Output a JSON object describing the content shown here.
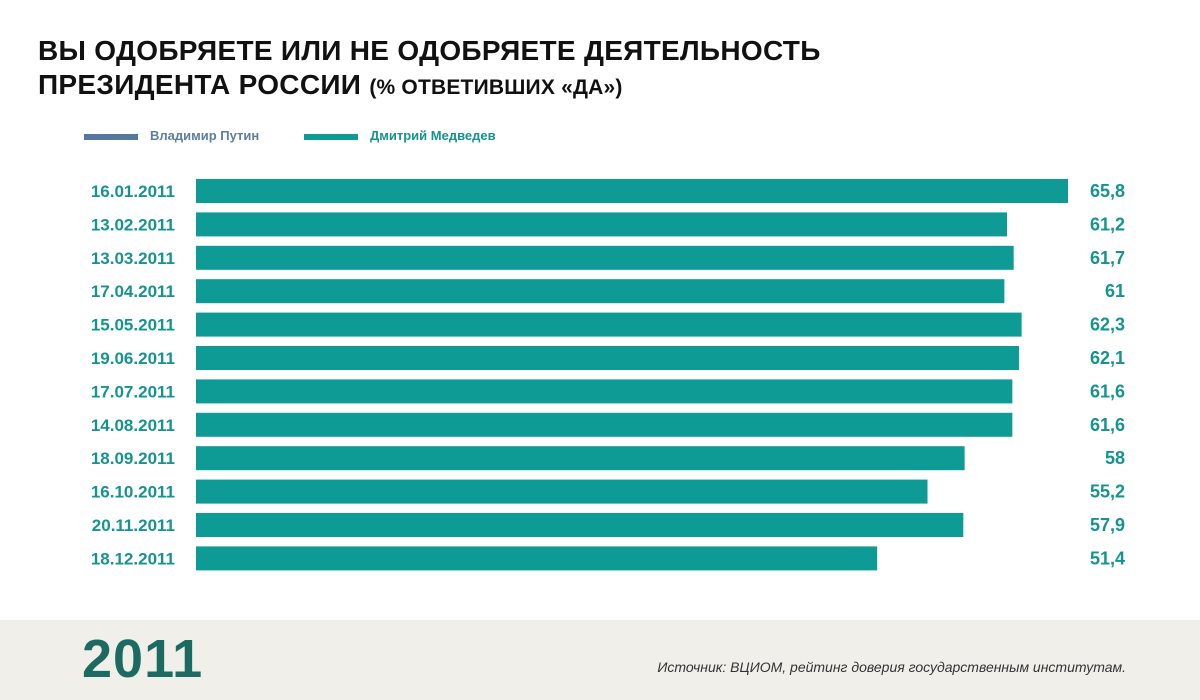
{
  "colors": {
    "putin": "#5477a0",
    "medvedev": "#0e9a95",
    "label_teal": "#15948f",
    "putin_label": "#5c7ea3",
    "year": "#1d6a62",
    "footer_bg": "#f1efe9"
  },
  "title": {
    "line1": "ВЫ ОДОБРЯЕТЕ ИЛИ НЕ ОДОБРЯЕТЕ ДЕЯТЕЛЬНОСТЬ",
    "line2_main": "ПРЕЗИДЕНТА РОССИИ",
    "line2_sub": "(% ОТВЕТИВШИХ «ДА»)"
  },
  "legend": {
    "putin": "Владимир Путин",
    "medvedev": "Дмитрий Медведев"
  },
  "chart_data": {
    "type": "bar",
    "orientation": "horizontal",
    "title": "ВЫ ОДОБРЯЕТЕ ИЛИ НЕ ОДОБРЯЕТЕ ДЕЯТЕЛЬНОСТЬ ПРЕЗИДЕНТА РОССИИ (% ОТВЕТИВШИХ «ДА»)",
    "xlabel": "",
    "ylabel": "",
    "xlim": [
      0,
      65.8
    ],
    "grid": false,
    "legend_position": "top-left",
    "categories": [
      "16.01.2011",
      "13.02.2011",
      "13.03.2011",
      "17.04.2011",
      "15.05.2011",
      "19.06.2011",
      "17.07.2011",
      "14.08.2011",
      "18.09.2011",
      "16.10.2011",
      "20.11.2011",
      "18.12.2011"
    ],
    "series": [
      {
        "name": "Дмитрий Медведев",
        "values": [
          65.8,
          61.2,
          61.7,
          61,
          62.3,
          62.1,
          61.6,
          61.6,
          58,
          55.2,
          57.9,
          51.4
        ]
      }
    ],
    "value_labels": [
      "65,8",
      "61,2",
      "61,7",
      "61",
      "62,3",
      "62,1",
      "61,6",
      "61,6",
      "58",
      "55,2",
      "57,9",
      "51,4"
    ]
  },
  "footer": {
    "year": "2011",
    "source": "Источник: ВЦИОМ, рейтинг доверия государственным институтам."
  }
}
